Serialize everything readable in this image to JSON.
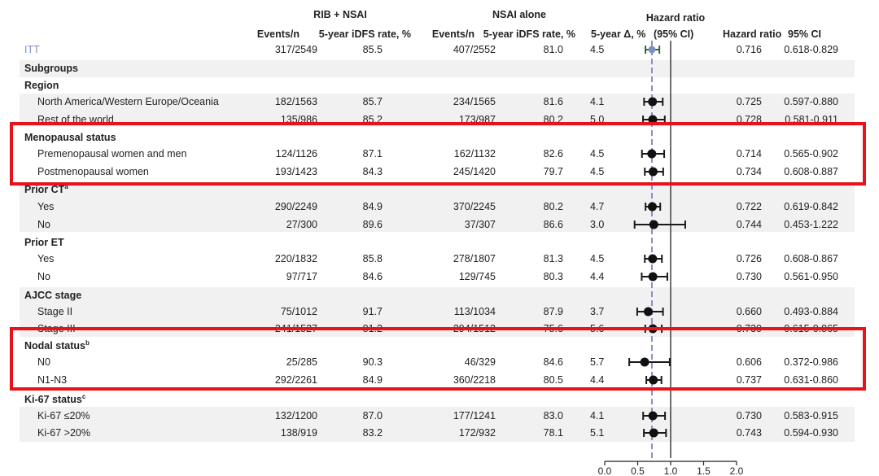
{
  "header": {
    "group1": "RIB + NSAI",
    "group2": "NSAI alone",
    "hr_title_line1": "Hazard ratio",
    "hr_title_line2": "(95% CI)",
    "col_events1": "Events/n",
    "col_rate1": "5-year iDFS rate, %",
    "col_events2": "Events/n",
    "col_rate2": "5-year iDFS rate, %",
    "col_delta": "5-year Δ, %",
    "col_hr": "Hazard ratio",
    "col_ci": "95% CI"
  },
  "subgroups_label": "Subgroups",
  "section_labels": {
    "region": "Region",
    "menopausal": "Menopausal status",
    "prior_ct": "Prior CT",
    "prior_ct_sup": "a",
    "prior_et": "Prior ET",
    "ajcc": "AJCC stage",
    "nodal": "Nodal status",
    "nodal_sup": "b",
    "ki67": "Ki-67 status",
    "ki67_sup": "c"
  },
  "chart_data": {
    "type": "forest",
    "xlim": [
      0.0,
      2.0
    ],
    "x_ticks": [
      "0.0",
      "0.5",
      "1.0",
      "1.5",
      "2.0"
    ],
    "reference_line": 1.0,
    "overall_hr_line": 0.716,
    "rows": [
      {
        "label": "ITT",
        "events1": "317/2549",
        "rate1": "85.5",
        "events2": "407/2552",
        "rate2": "81.0",
        "delta": "4.5",
        "hr": 0.716,
        "lo": 0.618,
        "hi": 0.829,
        "hr_text": "0.716",
        "ci_text": "0.618-0.829"
      },
      {
        "label": "North America/Western Europe/Oceania",
        "events1": "182/1563",
        "rate1": "85.7",
        "events2": "234/1565",
        "rate2": "81.6",
        "delta": "4.1",
        "hr": 0.725,
        "lo": 0.597,
        "hi": 0.88,
        "hr_text": "0.725",
        "ci_text": "0.597-0.880"
      },
      {
        "label": "Rest of the world",
        "events1": "135/986",
        "rate1": "85.2",
        "events2": "173/987",
        "rate2": "80.2",
        "delta": "5.0",
        "hr": 0.728,
        "lo": 0.581,
        "hi": 0.911,
        "hr_text": "0.728",
        "ci_text": "0.581-0.911"
      },
      {
        "label": "Premenopausal women and men",
        "events1": "124/1126",
        "rate1": "87.1",
        "events2": "162/1132",
        "rate2": "82.6",
        "delta": "4.5",
        "hr": 0.714,
        "lo": 0.565,
        "hi": 0.902,
        "hr_text": "0.714",
        "ci_text": "0.565-0.902"
      },
      {
        "label": "Postmenopausal women",
        "events1": "193/1423",
        "rate1": "84.3",
        "events2": "245/1420",
        "rate2": "79.7",
        "delta": "4.5",
        "hr": 0.734,
        "lo": 0.608,
        "hi": 0.887,
        "hr_text": "0.734",
        "ci_text": "0.608-0.887"
      },
      {
        "label": "Yes",
        "events1": "290/2249",
        "rate1": "84.9",
        "events2": "370/2245",
        "rate2": "80.2",
        "delta": "4.7",
        "hr": 0.722,
        "lo": 0.619,
        "hi": 0.842,
        "hr_text": "0.722",
        "ci_text": "0.619-0.842"
      },
      {
        "label": "No",
        "events1": "27/300",
        "rate1": "89.6",
        "events2": "37/307",
        "rate2": "86.6",
        "delta": "3.0",
        "hr": 0.744,
        "lo": 0.453,
        "hi": 1.222,
        "hr_text": "0.744",
        "ci_text": "0.453-1.222"
      },
      {
        "label": "Yes",
        "events1": "220/1832",
        "rate1": "85.8",
        "events2": "278/1807",
        "rate2": "81.3",
        "delta": "4.5",
        "hr": 0.726,
        "lo": 0.608,
        "hi": 0.867,
        "hr_text": "0.726",
        "ci_text": "0.608-0.867"
      },
      {
        "label": "No",
        "events1": "97/717",
        "rate1": "84.6",
        "events2": "129/745",
        "rate2": "80.3",
        "delta": "4.4",
        "hr": 0.73,
        "lo": 0.561,
        "hi": 0.95,
        "hr_text": "0.730",
        "ci_text": "0.561-0.950"
      },
      {
        "label": "Stage II",
        "events1": "75/1012",
        "rate1": "91.7",
        "events2": "113/1034",
        "rate2": "87.9",
        "delta": "3.7",
        "hr": 0.66,
        "lo": 0.493,
        "hi": 0.884,
        "hr_text": "0.660",
        "ci_text": "0.493-0.884"
      },
      {
        "label": "Stage III",
        "events1": "241/1527",
        "rate1": "81.2",
        "events2": "294/1512",
        "rate2": "75.6",
        "delta": "5.6",
        "hr": 0.73,
        "lo": 0.615,
        "hi": 0.865,
        "hr_text": "0.730",
        "ci_text": "0.615-0.865"
      },
      {
        "label": "N0",
        "events1": "25/285",
        "rate1": "90.3",
        "events2": "46/329",
        "rate2": "84.6",
        "delta": "5.7",
        "hr": 0.606,
        "lo": 0.372,
        "hi": 0.986,
        "hr_text": "0.606",
        "ci_text": "0.372-0.986"
      },
      {
        "label": "N1-N3",
        "events1": "292/2261",
        "rate1": "84.9",
        "events2": "360/2218",
        "rate2": "80.5",
        "delta": "4.4",
        "hr": 0.737,
        "lo": 0.631,
        "hi": 0.86,
        "hr_text": "0.737",
        "ci_text": "0.631-0.860"
      },
      {
        "label": "Ki-67 ≤20%",
        "events1": "132/1200",
        "rate1": "87.0",
        "events2": "177/1241",
        "rate2": "83.0",
        "delta": "4.1",
        "hr": 0.73,
        "lo": 0.583,
        "hi": 0.915,
        "hr_text": "0.730",
        "ci_text": "0.583-0.915"
      },
      {
        "label": "Ki-67 >20%",
        "events1": "138/919",
        "rate1": "83.2",
        "events2": "172/932",
        "rate2": "78.1",
        "delta": "5.1",
        "hr": 0.743,
        "lo": 0.594,
        "hi": 0.93,
        "hr_text": "0.743",
        "ci_text": "0.594-0.930"
      }
    ]
  },
  "highlight_color": "#e8121a",
  "itt_color": "#7f8fc0"
}
